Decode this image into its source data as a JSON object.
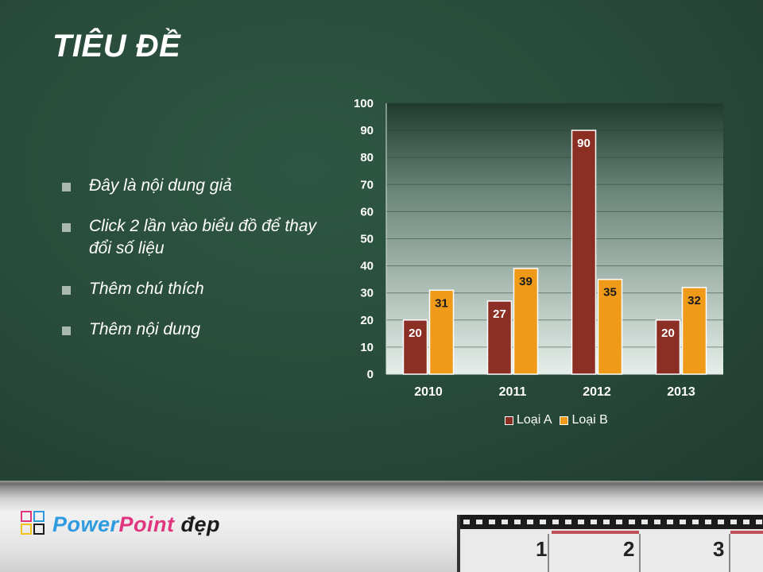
{
  "slide": {
    "title": "TIÊU ĐỀ",
    "bullets": [
      "Đây là nội dung giả",
      "Click 2 lần vào biểu đồ để thay đổi số liệu",
      "Thêm chú thích",
      "Thêm nội dung"
    ]
  },
  "chart_data": {
    "type": "bar",
    "categories": [
      "2010",
      "2011",
      "2012",
      "2013"
    ],
    "series": [
      {
        "name": "Loại A",
        "values": [
          20,
          27,
          90,
          20
        ],
        "color": "#8b2f24"
      },
      {
        "name": "Loại B",
        "values": [
          31,
          39,
          35,
          32
        ],
        "color": "#f09a1a"
      }
    ],
    "ylim": [
      0,
      100
    ],
    "yticks": [
      0,
      10,
      20,
      30,
      40,
      50,
      60,
      70,
      80,
      90,
      100
    ],
    "grid": true,
    "data_labels": true,
    "legend_position": "bottom"
  },
  "footer": {
    "logo_text": "PowerPoint đẹp",
    "ruler_numbers": [
      "1",
      "2",
      "3"
    ]
  }
}
